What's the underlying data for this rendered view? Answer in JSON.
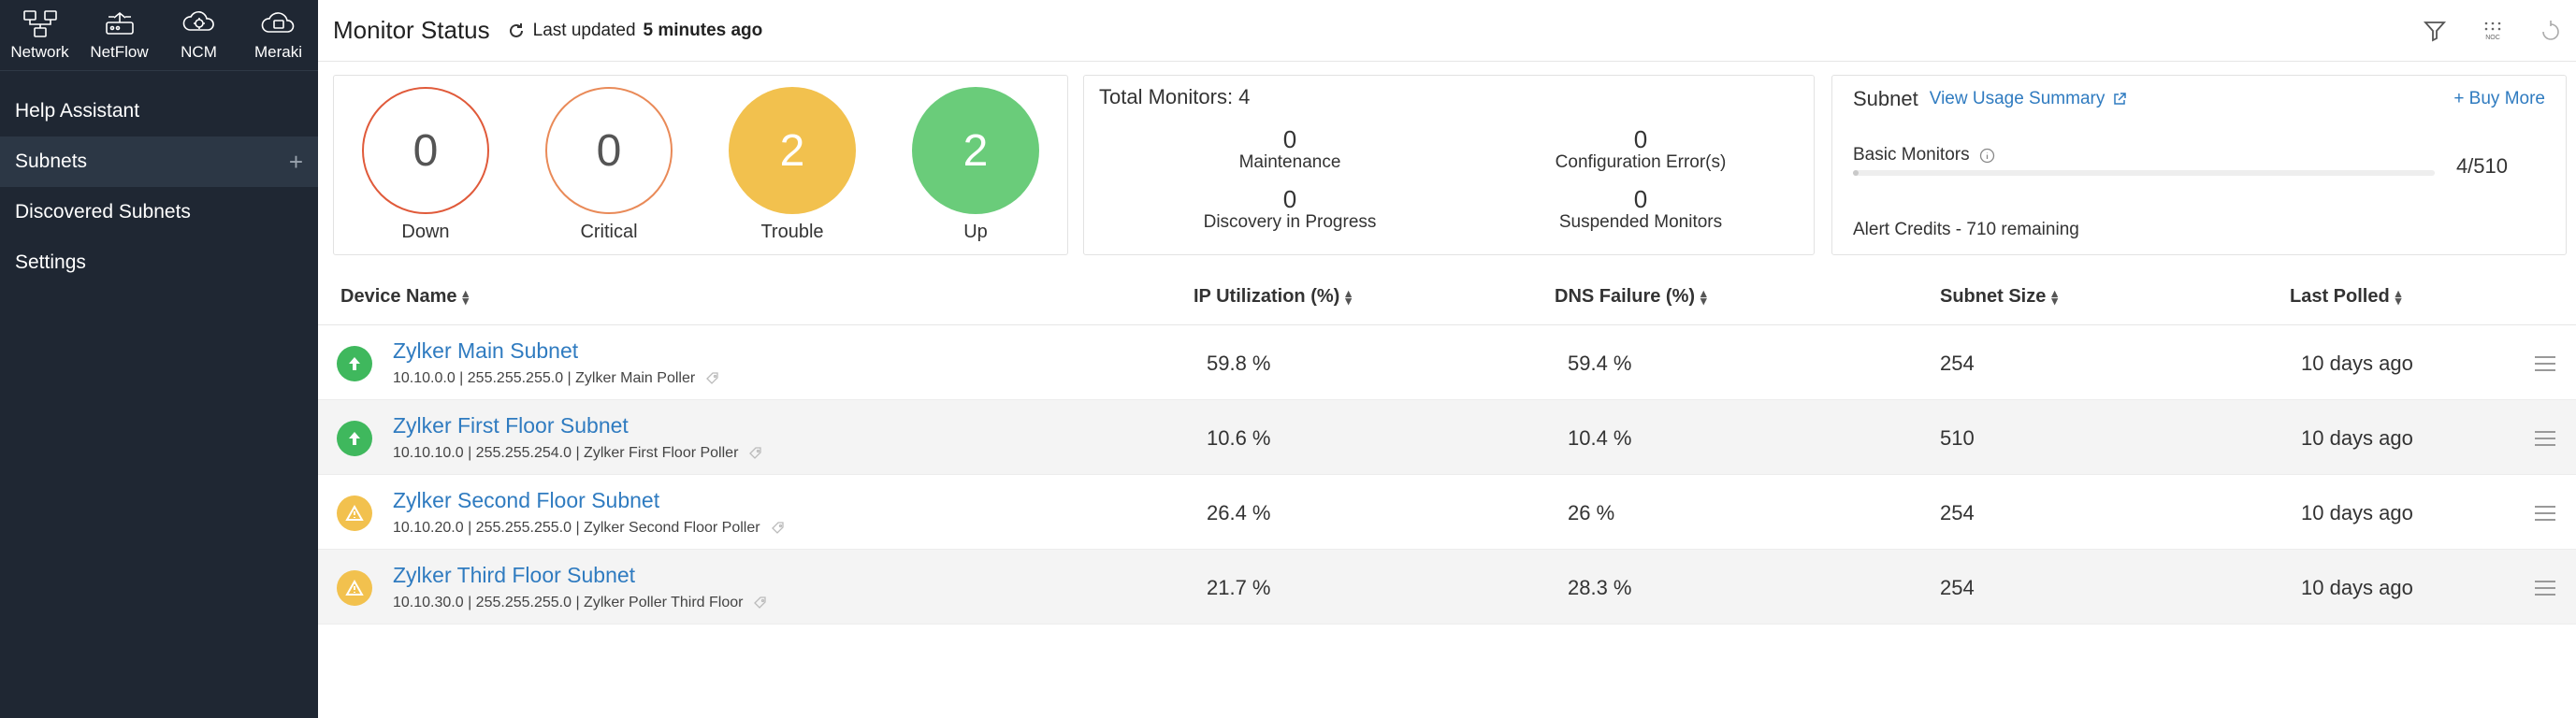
{
  "top_icons": [
    {
      "label": "Network",
      "icon": "network-icon"
    },
    {
      "label": "NetFlow",
      "icon": "netflow-icon"
    },
    {
      "label": "NCM",
      "icon": "ncm-icon"
    },
    {
      "label": "Meraki",
      "icon": "meraki-icon"
    }
  ],
  "sidebar": {
    "items": [
      {
        "label": "Help Assistant"
      },
      {
        "label": "Subnets",
        "plus": "+"
      },
      {
        "label": "Discovered Subnets"
      },
      {
        "label": "Settings"
      }
    ]
  },
  "header": {
    "title": "Monitor Status",
    "updated_prefix": "Last updated",
    "updated_value": "5 minutes ago",
    "tool_icons": [
      "filter-icon",
      "noc-icon",
      "refresh-action-icon"
    ],
    "noc_label": "NOC"
  },
  "status": {
    "down": {
      "value": "0",
      "label": "Down"
    },
    "critical": {
      "value": "0",
      "label": "Critical"
    },
    "trouble": {
      "value": "2",
      "label": "Trouble"
    },
    "up": {
      "value": "2",
      "label": "Up"
    }
  },
  "total": {
    "title": "Total Monitors: 4",
    "maintenance": {
      "value": "0",
      "label": "Maintenance"
    },
    "config_errors": {
      "value": "0",
      "label": "Configuration Error(s)"
    },
    "discovery": {
      "value": "0",
      "label": "Discovery in Progress"
    },
    "suspended": {
      "value": "0",
      "label": "Suspended Monitors"
    }
  },
  "subnet_card": {
    "title": "Subnet",
    "link": "View Usage Summary",
    "buy_more": "+ Buy More",
    "basic_label": "Basic Monitors",
    "basic_count": "4/510",
    "basic_fraction": 0.0078,
    "alert_credits": "Alert Credits - 710 remaining"
  },
  "table": {
    "columns": {
      "device": "Device Name",
      "ip": "IP Utilization (%)",
      "dns": "DNS Failure (%)",
      "size": "Subnet Size",
      "polled": "Last Polled"
    },
    "rows": [
      {
        "status": "up",
        "name": "Zylker Main Subnet",
        "sub": "10.10.0.0 | 255.255.255.0 | Zylker Main Poller",
        "ip": "59.8 %",
        "dns": "59.4 %",
        "size": "254",
        "polled": "10 days ago"
      },
      {
        "status": "up",
        "name": "Zylker First Floor Subnet",
        "sub": "10.10.10.0 | 255.255.254.0 | Zylker First Floor Poller",
        "ip": "10.6 %",
        "dns": "10.4 %",
        "size": "510",
        "polled": "10 days ago"
      },
      {
        "status": "trouble",
        "name": "Zylker Second Floor Subnet",
        "sub": "10.10.20.0 | 255.255.255.0 | Zylker Second Floor Poller",
        "ip": "26.4 %",
        "dns": "26 %",
        "size": "254",
        "polled": "10 days ago"
      },
      {
        "status": "trouble",
        "name": "Zylker Third Floor Subnet",
        "sub": "10.10.30.0 | 255.255.255.0 | Zylker Poller Third Floor",
        "ip": "21.7 %",
        "dns": "28.3 %",
        "size": "254",
        "polled": "10 days ago"
      }
    ]
  }
}
